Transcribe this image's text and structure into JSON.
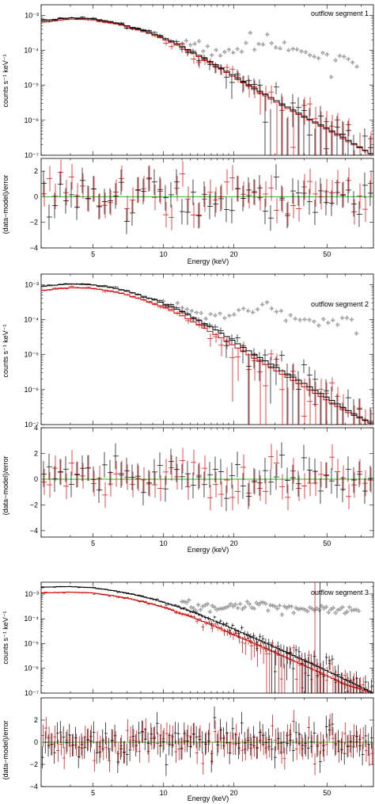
{
  "figure": {
    "xlabel": "Energy (keV)",
    "y_upper_label": "counts s⁻¹ keV⁻¹",
    "y_lower_label": "(data−model)/error",
    "xticks": [
      "5",
      "10",
      "20",
      "50"
    ],
    "colors": {
      "detector_a": "#000000",
      "detector_b": "#d40000",
      "background": "#8a8a8a",
      "zero_line": "#22bb22"
    }
  },
  "chart_data": [
    {
      "type": "scatter",
      "title": "outflow segment 1",
      "xlabel": "Energy (keV)",
      "ylabel": "counts s⁻¹ keV⁻¹",
      "xscale": "log",
      "yscale": "log",
      "xlim": [
        3,
        79
      ],
      "ylim": [
        1e-07,
        0.002
      ],
      "ytick_labels": [
        "10⁻³",
        "10⁻⁴",
        "10⁻⁵",
        "10⁻⁶",
        "10⁻⁷"
      ],
      "series": [
        {
          "x": [
            3,
            4,
            5,
            6,
            7,
            8,
            9,
            10,
            12,
            14,
            16,
            18,
            20,
            24,
            28,
            32,
            40,
            50,
            60,
            79
          ],
          "model": [
            0.0007,
            0.00085,
            0.0008,
            0.00065,
            0.0005,
            0.00039,
            0.0003,
            0.00023,
            0.00013,
            7.5e-05,
            4.6e-05,
            2.9e-05,
            1.9e-05,
            9e-06,
            5e-06,
            3e-06,
            1.3e-06,
            6e-07,
            3e-07,
            1e-07
          ]
        },
        {
          "x": [
            3,
            4,
            5,
            6,
            7,
            8,
            9,
            10,
            12,
            14,
            16,
            18,
            20,
            24,
            28,
            32,
            40,
            50,
            60,
            79
          ],
          "model": [
            0.00063,
            0.00078,
            0.00074,
            0.00061,
            0.00047,
            0.00036,
            0.00028,
            0.00021,
            0.00012,
            6.9e-05,
            4.2e-05,
            2.7e-05,
            1.7e-05,
            8.2e-06,
            4.5e-06,
            2.7e-06,
            1.2e-06,
            5.5e-07,
            2.7e-07,
            1e-07
          ]
        },
        {
          "x": [
            12,
            16,
            20,
            24,
            26,
            28,
            30,
            35,
            40,
            45,
            50,
            55,
            60,
            70
          ],
          "values": [
            0.00017,
            0.0001,
            8e-05,
            0.00025,
            0.00012,
            0.00026,
            0.00013,
            0.0001,
            8e-05,
            7e-05,
            6e-05,
            5.5e-05,
            7e-05,
            4.5e-05
          ]
        }
      ],
      "residual_ylim": [
        -4,
        3
      ],
      "residual_ytick_labels": [
        "2",
        "0",
        "−2",
        "−4"
      ]
    },
    {
      "type": "scatter",
      "title": "outflow segment 2",
      "xlabel": "Energy (keV)",
      "ylabel": "counts s⁻¹ keV⁻¹",
      "xscale": "log",
      "yscale": "log",
      "xlim": [
        3,
        79
      ],
      "ylim": [
        1e-07,
        0.002
      ],
      "ytick_labels": [
        "10⁻³",
        "10⁻⁴",
        "10⁻⁵",
        "10⁻⁶",
        "10⁻⁷"
      ],
      "series": [
        {
          "x": [
            3,
            4,
            5,
            6,
            7,
            8,
            9,
            10,
            12,
            14,
            16,
            18,
            20,
            24,
            28,
            32,
            40,
            50,
            60,
            79
          ],
          "model": [
            0.00088,
            0.00105,
            0.00098,
            0.00082,
            0.00064,
            0.00049,
            0.00038,
            0.00029,
            0.00017,
            9.8e-05,
            6e-05,
            3.8e-05,
            2.4e-05,
            1.1e-05,
            6e-06,
            3.5e-06,
            1.5e-06,
            6e-07,
            2.8e-07,
            1e-07
          ]
        },
        {
          "x": [
            3,
            4,
            5,
            6,
            7,
            8,
            9,
            10,
            12,
            14,
            16,
            18,
            20,
            24,
            28,
            32,
            40,
            50,
            60,
            79
          ],
          "model": [
            0.00068,
            0.00082,
            0.00078,
            0.00065,
            0.00051,
            0.00039,
            0.0003,
            0.00023,
            0.00013,
            7.4e-05,
            4.4e-05,
            2.8e-05,
            1.8e-05,
            8.5e-06,
            4.7e-06,
            2.8e-06,
            1.2e-06,
            5e-07,
            2.4e-07,
            1e-07
          ]
        },
        {
          "x": [
            10,
            12,
            16,
            20,
            24,
            26,
            28,
            30,
            35,
            40,
            45,
            50,
            55,
            60,
            70
          ],
          "values": [
            0.0003,
            0.0002,
            0.00014,
            0.00011,
            0.00028,
            0.00018,
            0.00029,
            0.00016,
            0.00012,
            0.0001,
            9e-05,
            8e-05,
            7e-05,
            0.0001,
            6e-05
          ]
        }
      ],
      "residual_ylim": [
        -4.5,
        4
      ],
      "residual_ytick_labels": [
        "4",
        "2",
        "0",
        "−2",
        "−4"
      ]
    },
    {
      "type": "scatter",
      "title": "outflow segment 3",
      "xlabel": "Energy (keV)",
      "ylabel": "counts s⁻¹ keV⁻¹",
      "xscale": "log",
      "yscale": "log",
      "xlim": [
        3,
        79
      ],
      "ylim": [
        1e-07,
        0.003
      ],
      "ytick_labels": [
        "10⁻³",
        "10⁻⁴",
        "10⁻⁵",
        "10⁻⁶",
        "10⁻⁷"
      ],
      "series": [
        {
          "x": [
            3,
            4,
            5,
            6,
            7,
            8,
            9,
            10,
            12,
            14,
            16,
            18,
            20,
            24,
            28,
            32,
            40,
            50,
            60,
            79
          ],
          "model": [
            0.0019,
            0.002,
            0.0018,
            0.0014,
            0.0011,
            0.00082,
            0.00062,
            0.00047,
            0.00027,
            0.000155,
            9.3e-05,
            5.9e-05,
            3.8e-05,
            1.8e-05,
            9.5e-06,
            5.4e-06,
            2.1e-06,
            8e-07,
            3.5e-07,
            1e-07
          ]
        },
        {
          "x": [
            3,
            4,
            5,
            6,
            7,
            8,
            9,
            10,
            12,
            14,
            16,
            18,
            20,
            24,
            28,
            32,
            40,
            50,
            60,
            79
          ],
          "model": [
            0.0011,
            0.0012,
            0.0011,
            0.00088,
            0.00068,
            0.00051,
            0.00039,
            0.00029,
            0.000165,
            9.5e-05,
            5.7e-05,
            3.6e-05,
            2.3e-05,
            1.1e-05,
            5.8e-06,
            3.3e-06,
            1.3e-06,
            5e-07,
            2.2e-07,
            1e-07
          ]
        },
        {
          "x": [
            12,
            14,
            16,
            18,
            20,
            24,
            26,
            28,
            30,
            35,
            40,
            45,
            50,
            55,
            60,
            70
          ],
          "values": [
            0.00045,
            0.00035,
            0.00032,
            0.00029,
            0.0003,
            0.00035,
            0.00048,
            0.0004,
            0.0003,
            0.00028,
            0.00026,
            0.00024,
            0.00022,
            0.0002,
            0.00022,
            0.00018
          ]
        }
      ],
      "residual_ylim": [
        -4,
        4
      ],
      "residual_ytick_labels": [
        "2",
        "0",
        "−2",
        "−4"
      ]
    }
  ]
}
